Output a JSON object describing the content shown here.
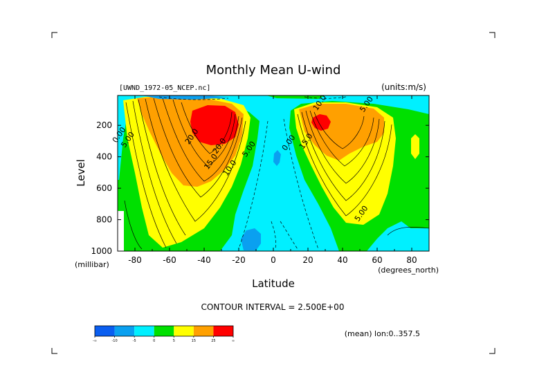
{
  "chart_data": {
    "type": "heatmap",
    "title": "Monthly Mean U-wind",
    "dataset_label": "[UWND_1972-05_NCEP.nc]",
    "units_label": "(units:m/s)",
    "xlabel": "Latitude",
    "x_units": "(degrees_north)",
    "ylabel": "Level",
    "y_units": "(millibar)",
    "xlim": [
      -90,
      90
    ],
    "ylim": [
      1000,
      10
    ],
    "x_ticks": [
      -80,
      -60,
      -40,
      -20,
      0,
      20,
      40,
      60,
      80
    ],
    "y_ticks": [
      200,
      400,
      600,
      800,
      1000
    ],
    "contour_interval_text": "CONTOUR INTERVAL = 2.500E+00",
    "mean_text": "(mean) lon:0..357.5",
    "contour_labels": [
      {
        "text": "20.0",
        "lat": -46,
        "lev": 280
      },
      {
        "text": "20.0",
        "lat": -30,
        "lev": 340
      },
      {
        "text": "15.0",
        "lat": -35,
        "lev": 440
      },
      {
        "text": "10.0",
        "lat": -24,
        "lev": 480
      },
      {
        "text": "5.00",
        "lat": -83,
        "lev": 300
      },
      {
        "text": "0.00",
        "lat": -88,
        "lev": 270
      },
      {
        "text": "5.00",
        "lat": -13,
        "lev": 360
      },
      {
        "text": "0.00",
        "lat": 10,
        "lev": 320
      },
      {
        "text": "15.0",
        "lat": 20,
        "lev": 310
      },
      {
        "text": "10.0",
        "lat": 28,
        "lev": 65
      },
      {
        "text": "5.00",
        "lat": 55,
        "lev": 75
      },
      {
        "text": "5.00",
        "lat": 52,
        "lev": 770
      }
    ],
    "colorbar": {
      "colors": [
        "#0a5ef0",
        "#0aa0f0",
        "#00f0ff",
        "#00e000",
        "#ffff00",
        "#ffa000",
        "#ff0000"
      ],
      "labels": [
        "-∞",
        "-10",
        "-5",
        "0",
        "5",
        "15",
        "25",
        "∞"
      ]
    }
  }
}
